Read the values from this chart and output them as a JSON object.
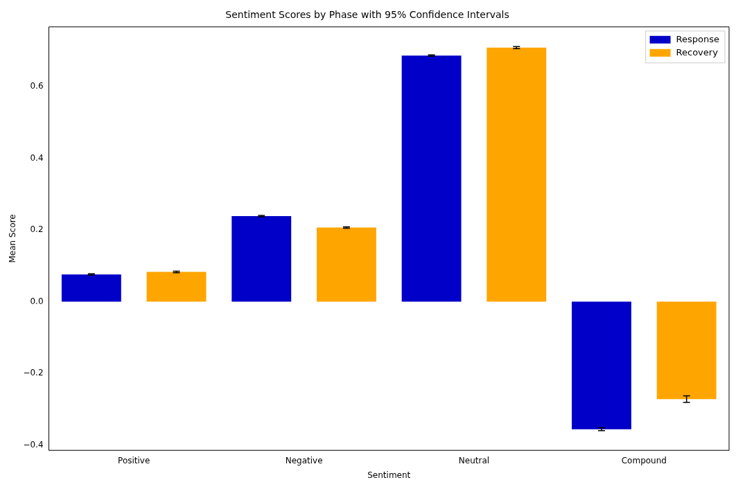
{
  "chart_data": {
    "type": "bar",
    "title": "Sentiment Scores by Phase with 95% Confidence Intervals",
    "xlabel": "Sentiment",
    "ylabel": "Mean Score",
    "categories": [
      "Positive",
      "Negative",
      "Neutral",
      "Compound"
    ],
    "series": [
      {
        "name": "Response",
        "color": "#0000c8",
        "values": [
          0.076,
          0.239,
          0.687,
          -0.356
        ],
        "errors": [
          0.002,
          0.002,
          0.002,
          0.004
        ]
      },
      {
        "name": "Recovery",
        "color": "#ffa500",
        "values": [
          0.083,
          0.207,
          0.709,
          -0.272
        ],
        "errors": [
          0.002,
          0.002,
          0.003,
          0.009
        ]
      }
    ],
    "ylim": [
      -0.415,
      0.767
    ],
    "yticks": [
      {
        "value": -0.4,
        "label": "−0.4"
      },
      {
        "value": -0.2,
        "label": "−0.2"
      },
      {
        "value": 0,
        "label": "0.0"
      },
      {
        "value": 0.2,
        "label": "0.2"
      },
      {
        "value": 0.4,
        "label": "0.4"
      },
      {
        "value": 0.6,
        "label": "0.6"
      }
    ],
    "grid": false,
    "legend": "top right"
  }
}
